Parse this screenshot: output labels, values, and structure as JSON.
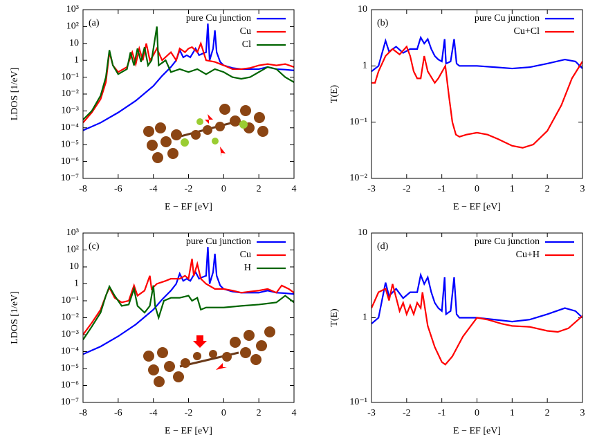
{
  "chart_data": [
    {
      "type": "line",
      "annotation": "(a)",
      "ylabel": "LDOS [1/eV]",
      "xlabel": "E − EF [eV]",
      "yscale": "log",
      "legend": "upper right",
      "xlim": [
        -8,
        4
      ],
      "xticks": [
        -8,
        -6,
        -4,
        -2,
        0,
        2,
        4
      ],
      "ylim": [
        1e-07,
        1000
      ],
      "yticks": [
        {
          "value": 1e-07,
          "label": "10⁻⁷"
        },
        {
          "value": 1e-06,
          "label": "10⁻⁶"
        },
        {
          "value": 1e-05,
          "label": "10⁻⁵"
        },
        {
          "value": 0.0001,
          "label": "10⁻⁴"
        },
        {
          "value": 0.001,
          "label": "10⁻³"
        },
        {
          "value": 0.01,
          "label": "10⁻²"
        },
        {
          "value": 0.1,
          "label": "10⁻¹"
        },
        1,
        10,
        {
          "value": 100,
          "label": "10²"
        },
        {
          "value": 1000,
          "label": "10³"
        }
      ],
      "series": [
        {
          "name": "pure Cu junction",
          "color": "#0000ff",
          "x": [
            -8,
            -7,
            -6,
            -5,
            -4,
            -3.5,
            -3,
            -2.7,
            -2.5,
            -2.3,
            -2.1,
            -1.9,
            -1.6,
            -1.4,
            -1.2,
            -1,
            -0.9,
            -0.8,
            -0.6,
            -0.5,
            -0.4,
            -0.2,
            0,
            0.5,
            1,
            1.5,
            2,
            2.5,
            3,
            3.5,
            4
          ],
          "values": [
            7e-05,
            0.0002,
            0.0008,
            0.004,
            0.03,
            0.12,
            0.4,
            1,
            4,
            1.5,
            2,
            1.5,
            5,
            2,
            2.5,
            3,
            150,
            1,
            5,
            60,
            3,
            0.8,
            0.5,
            0.35,
            0.3,
            0.3,
            0.3,
            0.4,
            0.3,
            0.28,
            0.25
          ]
        },
        {
          "name": "Cu",
          "color": "#ff0000",
          "x": [
            -8,
            -7.5,
            -7,
            -6.7,
            -6.5,
            -6.3,
            -6,
            -5.5,
            -5.2,
            -5,
            -4.8,
            -4.6,
            -4.4,
            -4.2,
            -4,
            -3.8,
            -3.5,
            -3,
            -2.7,
            -2.5,
            -2.2,
            -2,
            -1.8,
            -1.5,
            -1.3,
            -1,
            -0.5,
            0,
            0.5,
            1,
            1.5,
            2,
            2.5,
            3,
            3.5,
            4
          ],
          "values": [
            0.0002,
            0.0008,
            0.005,
            0.05,
            3,
            0.5,
            0.2,
            0.4,
            3,
            0.6,
            5,
            1,
            10,
            1,
            2,
            5,
            1,
            3,
            1,
            5,
            3,
            5,
            6,
            3,
            10,
            1,
            0.8,
            0.5,
            0.3,
            0.3,
            0.35,
            0.5,
            0.6,
            0.5,
            0.6,
            0.4
          ]
        },
        {
          "name": "Cl",
          "color": "#006400",
          "x": [
            -8,
            -7.5,
            -7,
            -6.7,
            -6.5,
            -6.3,
            -6,
            -5.5,
            -5.3,
            -5.1,
            -4.9,
            -4.7,
            -4.5,
            -4.3,
            -4.1,
            -3.8,
            -3.7,
            -3.3,
            -3,
            -2.5,
            -2,
            -1.5,
            -1,
            -0.5,
            0,
            0.5,
            1,
            1.5,
            2,
            2.5,
            3,
            3.5,
            4
          ],
          "values": [
            0.0003,
            0.001,
            0.008,
            0.1,
            4,
            0.5,
            0.15,
            0.3,
            3,
            0.5,
            5,
            0.8,
            6,
            0.5,
            1,
            100,
            0.5,
            1,
            0.2,
            0.3,
            0.2,
            0.3,
            0.15,
            0.3,
            0.2,
            0.1,
            0.08,
            0.1,
            0.2,
            0.4,
            0.3,
            0.1,
            0.05
          ]
        }
      ]
    },
    {
      "type": "line",
      "annotation": "(b)",
      "ylabel": "T(E)",
      "xlabel": "E − EF [eV]",
      "yscale": "log",
      "legend": "upper right",
      "xlim": [
        -3,
        3
      ],
      "xticks": [
        -3,
        -2,
        -1,
        0,
        1,
        2,
        3
      ],
      "ylim": [
        0.01,
        10
      ],
      "yticks": [
        {
          "value": 0.01,
          "label": "10⁻²"
        },
        {
          "value": 0.1,
          "label": "10⁻¹"
        },
        1,
        10
      ],
      "series": [
        {
          "name": "pure Cu junction",
          "color": "#0000ff",
          "x": [
            -3,
            -2.8,
            -2.6,
            -2.5,
            -2.3,
            -2.1,
            -1.9,
            -1.7,
            -1.6,
            -1.5,
            -1.4,
            -1.3,
            -1.2,
            -1.1,
            -1,
            -0.92,
            -0.88,
            -0.75,
            -0.65,
            -0.58,
            -0.5,
            0,
            0.5,
            1,
            1.5,
            2,
            2.5,
            2.8,
            3
          ],
          "values": [
            0.8,
            1,
            2.8,
            1.8,
            2.2,
            1.7,
            2,
            2,
            3.2,
            2.5,
            3,
            2,
            1.5,
            1.3,
            1.2,
            3,
            1.1,
            1.2,
            3,
            1.1,
            1,
            1,
            0.95,
            0.9,
            0.95,
            1.1,
            1.3,
            1.2,
            0.9
          ]
        },
        {
          "name": "Cu+Cl",
          "color": "#ff0000",
          "x": [
            -3,
            -2.9,
            -2.8,
            -2.6,
            -2.4,
            -2.2,
            -2,
            -1.9,
            -1.8,
            -1.7,
            -1.6,
            -1.5,
            -1.4,
            -1.2,
            -1.1,
            -0.9,
            -0.8,
            -0.7,
            -0.6,
            -0.5,
            -0.3,
            0,
            0.3,
            0.6,
            1,
            1.3,
            1.6,
            2,
            2.4,
            2.7,
            3
          ],
          "values": [
            0.5,
            0.5,
            0.8,
            1.5,
            2,
            1.6,
            2.2,
            1.5,
            0.8,
            0.6,
            0.6,
            1.5,
            0.8,
            0.5,
            0.6,
            1,
            0.3,
            0.1,
            0.06,
            0.055,
            0.06,
            0.065,
            0.06,
            0.05,
            0.038,
            0.035,
            0.04,
            0.07,
            0.2,
            0.6,
            1.2
          ]
        }
      ]
    },
    {
      "type": "line",
      "annotation": "(c)",
      "ylabel": "LDOS [1/eV]",
      "xlabel": "E − EF [eV]",
      "yscale": "log",
      "legend": "upper right",
      "xlim": [
        -8,
        4
      ],
      "xticks": [
        -8,
        -6,
        -4,
        -2,
        0,
        2,
        4
      ],
      "ylim": [
        1e-07,
        1000
      ],
      "yticks": [
        {
          "value": 1e-07,
          "label": "10⁻⁷"
        },
        {
          "value": 1e-06,
          "label": "10⁻⁶"
        },
        {
          "value": 1e-05,
          "label": "10⁻⁵"
        },
        {
          "value": 0.0001,
          "label": "10⁻⁴"
        },
        {
          "value": 0.001,
          "label": "10⁻³"
        },
        {
          "value": 0.01,
          "label": "10⁻²"
        },
        {
          "value": 0.1,
          "label": "10⁻¹"
        },
        1,
        10,
        {
          "value": 100,
          "label": "10²"
        },
        {
          "value": 1000,
          "label": "10³"
        }
      ],
      "series": [
        {
          "name": "pure Cu junction",
          "color": "#0000ff",
          "x": [
            -8,
            -7,
            -6,
            -5,
            -4,
            -3.5,
            -3,
            -2.7,
            -2.5,
            -2.3,
            -2.1,
            -1.9,
            -1.6,
            -1.4,
            -1.2,
            -1,
            -0.9,
            -0.8,
            -0.6,
            -0.5,
            -0.4,
            -0.2,
            0,
            0.5,
            1,
            1.5,
            2,
            2.5,
            3,
            3.5,
            4
          ],
          "values": [
            7e-05,
            0.0002,
            0.0008,
            0.004,
            0.03,
            0.12,
            0.4,
            1,
            4,
            1.5,
            2,
            1.5,
            5,
            2,
            2.5,
            3,
            150,
            1,
            5,
            60,
            3,
            0.8,
            0.5,
            0.35,
            0.3,
            0.3,
            0.3,
            0.4,
            0.3,
            0.28,
            0.25
          ]
        },
        {
          "name": "Cu",
          "color": "#ff0000",
          "x": [
            -8,
            -7.5,
            -7,
            -6.7,
            -6.5,
            -6.2,
            -5.8,
            -5.4,
            -5.1,
            -4.9,
            -4.5,
            -4.2,
            -4.1,
            -3.8,
            -3.3,
            -3,
            -2.5,
            -2.2,
            -2,
            -1.8,
            -1.7,
            -1.5,
            -1.3,
            -1,
            -0.5,
            0,
            0.5,
            1,
            1.5,
            2,
            2.5,
            3,
            3.3,
            3.7,
            4
          ],
          "values": [
            0.001,
            0.005,
            0.03,
            0.2,
            0.6,
            0.15,
            0.08,
            0.1,
            0.8,
            0.2,
            0.4,
            3,
            0.5,
            1,
            1.5,
            2,
            2,
            3,
            2,
            30,
            3,
            15,
            2,
            1,
            0.5,
            0.5,
            0.4,
            0.3,
            0.35,
            0.4,
            0.5,
            0.3,
            0.8,
            0.5,
            0.3
          ]
        },
        {
          "name": "H",
          "color": "#006400",
          "x": [
            -8,
            -7.5,
            -7,
            -6.7,
            -6.5,
            -6.2,
            -5.8,
            -5.4,
            -5.1,
            -4.9,
            -4.5,
            -4.2,
            -4,
            -3.9,
            -3.7,
            -3.4,
            -3,
            -2.5,
            -2,
            -1.8,
            -1.5,
            -1.3,
            -1,
            -0.5,
            0,
            1,
            2,
            3,
            3.5,
            4
          ],
          "values": [
            0.0005,
            0.003,
            0.02,
            0.2,
            0.7,
            0.2,
            0.05,
            0.06,
            0.5,
            0.05,
            0.02,
            0.05,
            0.8,
            0.05,
            0.01,
            0.1,
            0.15,
            0.15,
            0.2,
            0.1,
            0.15,
            0.03,
            0.04,
            0.04,
            0.04,
            0.05,
            0.06,
            0.08,
            0.2,
            0.08
          ]
        }
      ]
    },
    {
      "type": "line",
      "annotation": "(d)",
      "ylabel": "T(E)",
      "xlabel": "E − EF [eV]",
      "yscale": "log",
      "legend": "upper right",
      "xlim": [
        -3,
        3
      ],
      "xticks": [
        -3,
        -2,
        -1,
        0,
        1,
        2,
        3
      ],
      "ylim": [
        0.1,
        10
      ],
      "yticks": [
        {
          "value": 0.1,
          "label": "10⁻¹"
        },
        1,
        10
      ],
      "series": [
        {
          "name": "pure Cu junction",
          "color": "#0000ff",
          "x": [
            -3,
            -2.8,
            -2.6,
            -2.5,
            -2.3,
            -2.1,
            -1.9,
            -1.7,
            -1.6,
            -1.5,
            -1.4,
            -1.3,
            -1.2,
            -1.1,
            -1,
            -0.92,
            -0.88,
            -0.75,
            -0.65,
            -0.58,
            -0.5,
            0,
            0.5,
            1,
            1.5,
            2,
            2.5,
            2.8,
            3
          ],
          "values": [
            0.85,
            1,
            2.6,
            1.8,
            2.2,
            1.7,
            2,
            2,
            3.2,
            2.5,
            3,
            2,
            1.5,
            1.3,
            1.2,
            3,
            1.1,
            1.2,
            3,
            1.1,
            1,
            1,
            0.95,
            0.9,
            0.95,
            1.1,
            1.3,
            1.2,
            1
          ]
        },
        {
          "name": "Cu+H",
          "color": "#ff0000",
          "x": [
            -3,
            -2.8,
            -2.6,
            -2.5,
            -2.4,
            -2.2,
            -2.1,
            -2,
            -1.9,
            -1.8,
            -1.7,
            -1.6,
            -1.55,
            -1.4,
            -1.2,
            -1,
            -0.9,
            -0.7,
            -0.4,
            0,
            0.3,
            0.7,
            1,
            1.5,
            2,
            2.3,
            2.6,
            3
          ],
          "values": [
            1.3,
            2,
            2.2,
            1.6,
            2.5,
            1.2,
            1.5,
            1.1,
            1.4,
            1.1,
            1.5,
            1.3,
            2,
            0.8,
            0.45,
            0.3,
            0.28,
            0.35,
            0.6,
            1,
            0.95,
            0.85,
            0.8,
            0.78,
            0.7,
            0.68,
            0.75,
            1.05
          ]
        }
      ]
    }
  ]
}
